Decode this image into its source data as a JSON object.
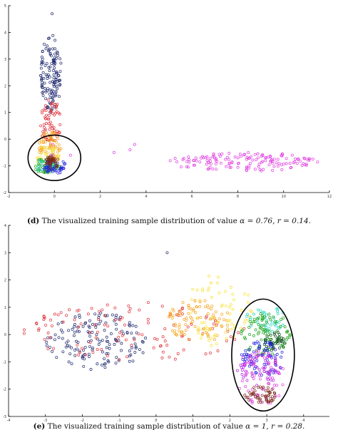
{
  "chart_data": [
    {
      "type": "scatter",
      "title": "",
      "xlabel": "",
      "ylabel": "",
      "xlim": [
        -2,
        12
      ],
      "ylim": [
        -2,
        5
      ],
      "xticks": [
        "-2",
        "0",
        "2",
        "4",
        "6",
        "8",
        "10",
        "12"
      ],
      "yticks": [
        "-2",
        "-1",
        "0",
        "1",
        "2",
        "3",
        "4",
        "5"
      ],
      "grid": false,
      "series": [
        {
          "color": "#1f2a6e",
          "cluster": {
            "x": [
              -0.6,
              0.3
            ],
            "y": [
              1.0,
              4.0
            ],
            "n": 130
          },
          "extra": [
            [
              -0.1,
              4.7
            ]
          ]
        },
        {
          "color": "#e0313b",
          "cluster": {
            "x": [
              -0.6,
              0.3
            ],
            "y": [
              -0.3,
              1.5
            ],
            "n": 70
          }
        },
        {
          "color": "#f5a623",
          "cluster": {
            "x": [
              -0.7,
              0.3
            ],
            "y": [
              -0.9,
              0.3
            ],
            "n": 70
          }
        },
        {
          "color": "#f7e23a",
          "cluster": {
            "x": [
              -0.8,
              0.2
            ],
            "y": [
              -1.1,
              -0.2
            ],
            "n": 40
          }
        },
        {
          "color": "#1aa31a",
          "cluster": {
            "x": [
              -0.9,
              0.3
            ],
            "y": [
              -1.3,
              -0.7
            ],
            "n": 55
          }
        },
        {
          "color": "#2ad4c4",
          "cluster": {
            "x": [
              -0.9,
              0.0
            ],
            "y": [
              -1.2,
              -0.8
            ],
            "n": 20
          }
        },
        {
          "color": "#2020e0",
          "cluster": {
            "x": [
              -0.5,
              0.5
            ],
            "y": [
              -1.3,
              -0.7
            ],
            "n": 50
          }
        },
        {
          "color": "#7a2a1a",
          "cluster": {
            "x": [
              -0.4,
              0.2
            ],
            "y": [
              -1.1,
              -0.6
            ],
            "n": 40
          }
        },
        {
          "color": "#e040e0",
          "cluster": {
            "x": [
              5.0,
              11.8
            ],
            "y": [
              -1.2,
              -0.5
            ],
            "n": 150
          },
          "extra": [
            [
              0.7,
              -0.6
            ],
            [
              2.6,
              -0.5
            ],
            [
              3.3,
              -0.4
            ],
            [
              3.5,
              -0.2
            ],
            [
              -0.1,
              -0.6
            ]
          ]
        }
      ],
      "highlight_ellipse": {
        "cx": 0.0,
        "cy": -0.7,
        "rx": 1.15,
        "ry": 0.85
      },
      "caption": {
        "label": "(d)",
        "text": "The visualized training sample distribution of value",
        "alpha": "α = 0.76,",
        "r": "r = 0.14."
      }
    },
    {
      "type": "scatter",
      "title": "",
      "xlabel": "",
      "ylabel": "",
      "xlim": [
        -4,
        4.7
      ],
      "ylim": [
        -3,
        4
      ],
      "xticks": [
        "-4",
        "-3",
        "-2",
        "-1",
        "0",
        "1",
        "2",
        "3",
        "4"
      ],
      "yticks": [
        "-3",
        "-2",
        "-1",
        "0",
        "1",
        "2",
        "3",
        "4"
      ],
      "grid": false,
      "series": [
        {
          "color": "#1f2a6e",
          "cluster": {
            "x": [
              -3.0,
              -0.2
            ],
            "y": [
              -1.3,
              0.8
            ],
            "n": 150
          },
          "extra": [
            [
              0.3,
              3.0
            ]
          ]
        },
        {
          "color": "#e0313b",
          "cluster": {
            "x": [
              -3.6,
              2.6
            ],
            "y": [
              -1.0,
              1.2
            ],
            "n": 120
          }
        },
        {
          "color": "#f5a623",
          "cluster": {
            "x": [
              0.3,
              2.0
            ],
            "y": [
              -0.3,
              1.3
            ],
            "n": 90
          }
        },
        {
          "color": "#f7e23a",
          "cluster": {
            "x": [
              0.8,
              2.6
            ],
            "y": [
              -0.5,
              2.3
            ],
            "n": 70
          }
        },
        {
          "color": "#2ad4c4",
          "cluster": {
            "x": [
              2.4,
              3.6
            ],
            "y": [
              0.1,
              1.0
            ],
            "n": 40
          }
        },
        {
          "color": "#1aa31a",
          "cluster": {
            "x": [
              2.3,
              3.7
            ],
            "y": [
              -0.8,
              0.8
            ],
            "n": 90
          }
        },
        {
          "color": "#0b4a1a",
          "cluster": {
            "x": [
              2.9,
              3.5
            ],
            "y": [
              -0.6,
              0.1
            ],
            "n": 40
          }
        },
        {
          "color": "#2020e0",
          "cluster": {
            "x": [
              2.3,
              3.5
            ],
            "y": [
              -1.5,
              -0.2
            ],
            "n": 70
          }
        },
        {
          "color": "#b020e0",
          "cluster": {
            "x": [
              2.2,
              3.4
            ],
            "y": [
              -1.9,
              -0.6
            ],
            "n": 60
          }
        },
        {
          "color": "#e040e0",
          "cluster": {
            "x": [
              2.2,
              3.5
            ],
            "y": [
              -2.6,
              -0.6
            ],
            "n": 60
          }
        },
        {
          "color": "#7a2a1a",
          "cluster": {
            "x": [
              2.4,
              3.3
            ],
            "y": [
              -2.5,
              -1.9
            ],
            "n": 50
          }
        }
      ],
      "highlight_ellipse": {
        "cx": 2.9,
        "cy": -0.75,
        "rx": 0.85,
        "ry": 2.05
      },
      "caption": {
        "label": "(e)",
        "text": "The visualized training sample distribution of value",
        "alpha": "α = 1,",
        "r": "r = 0.28."
      }
    }
  ]
}
